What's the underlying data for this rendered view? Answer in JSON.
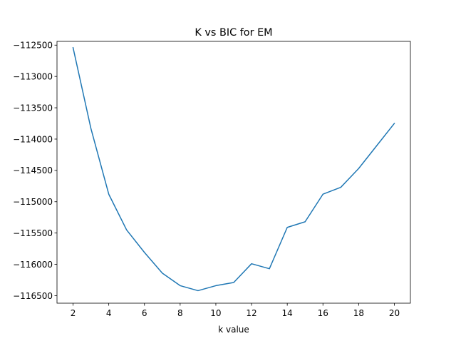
{
  "chart_data": {
    "type": "line",
    "title": "K vs BIC for EM",
    "xlabel": "k value",
    "ylabel": "",
    "xlim": [
      1.1,
      20.9
    ],
    "ylim": [
      -116620,
      -112440
    ],
    "xticks": [
      2,
      4,
      6,
      8,
      10,
      12,
      14,
      16,
      18,
      20
    ],
    "yticks": [
      -112500,
      -113000,
      -113500,
      -114000,
      -114500,
      -115000,
      -115500,
      -116000,
      -116500
    ],
    "ytick_labels": [
      "−112500",
      "−113000",
      "−113500",
      "−114000",
      "−114500",
      "−115000",
      "−115500",
      "−116000",
      "−116500"
    ],
    "grid": false,
    "series": [
      {
        "color": "#1f77b4",
        "x": [
          2,
          3,
          4,
          5,
          6,
          7,
          8,
          9,
          10,
          11,
          12,
          13,
          14,
          15,
          16,
          17,
          18,
          19,
          20
        ],
        "y": [
          -112540,
          -113830,
          -114880,
          -115450,
          -115810,
          -116140,
          -116340,
          -116420,
          -116340,
          -116290,
          -115990,
          -116070,
          -115410,
          -115320,
          -114880,
          -114770,
          -114470,
          -114110,
          -113750
        ]
      }
    ]
  }
}
